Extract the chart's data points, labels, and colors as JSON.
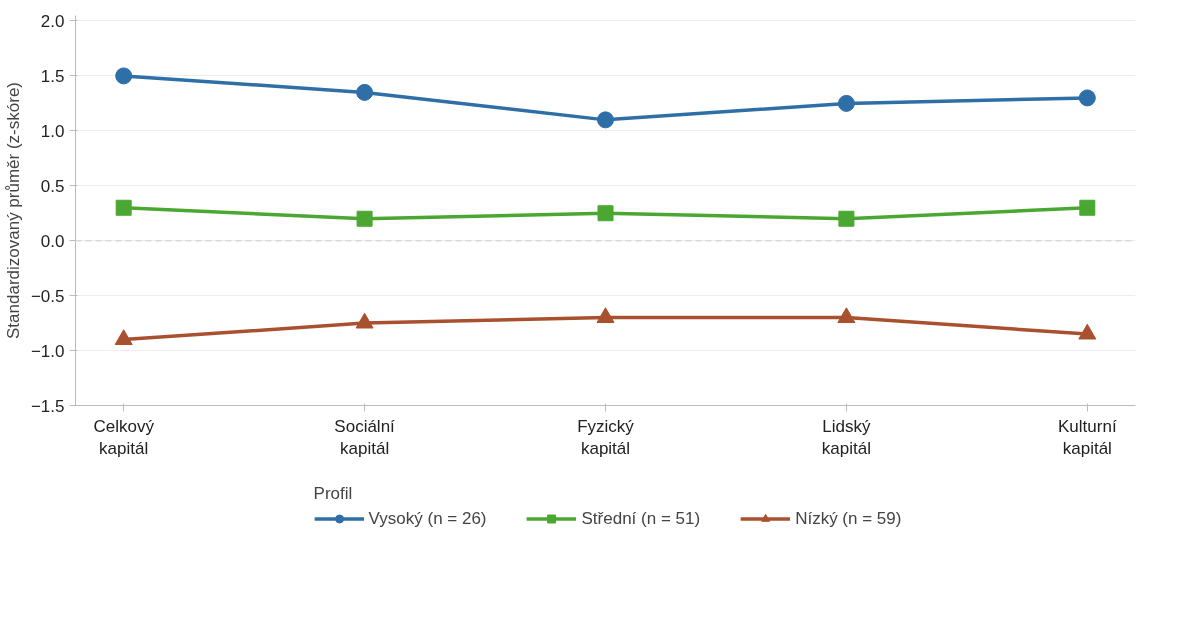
{
  "chart_data": {
    "type": "line",
    "ylabel": "Standardizovaný průměr (z-skóre)",
    "legend_title": "Profil",
    "legend": "bottom",
    "grid": "y",
    "categories": [
      "Celkový\nkapitál",
      "Sociální\nkapitál",
      "Fyzický\nkapitál",
      "Lidský\nkapitál",
      "Kulturní\nkapitál"
    ],
    "ylim": [
      -1.5,
      2.05
    ],
    "yticks": [
      {
        "value": -1.5,
        "label": "−1.5"
      },
      {
        "value": -1.0,
        "label": "−1.0"
      },
      {
        "value": -0.5,
        "label": "−0.5"
      },
      {
        "value": 0,
        "label": "0.0"
      },
      {
        "value": 0.5,
        "label": "0.5"
      },
      {
        "value": 1.0,
        "label": "1.0"
      },
      {
        "value": 1.5,
        "label": "1.5"
      },
      {
        "value": 2.0,
        "label": "2.0"
      }
    ],
    "ref_lines": [
      {
        "axis": "y",
        "value": 0,
        "label": null,
        "color": "#d9d9d9",
        "line_style": "dashed"
      }
    ],
    "series": [
      {
        "name": "Vysoký (n = 26)",
        "color": "#2e6fa7",
        "marker": "circle",
        "values": [
          1.5,
          1.35,
          1.1,
          1.25,
          1.3
        ]
      },
      {
        "name": "Střední (n = 51)",
        "color": "#4aa832",
        "marker": "square",
        "values": [
          0.3,
          0.2,
          0.25,
          0.2,
          0.3
        ]
      },
      {
        "name": "Nízký (n = 59)",
        "color": "#a9512e",
        "marker": "triangle",
        "values": [
          -0.9,
          -0.75,
          -0.7,
          -0.7,
          -0.85
        ]
      }
    ]
  }
}
